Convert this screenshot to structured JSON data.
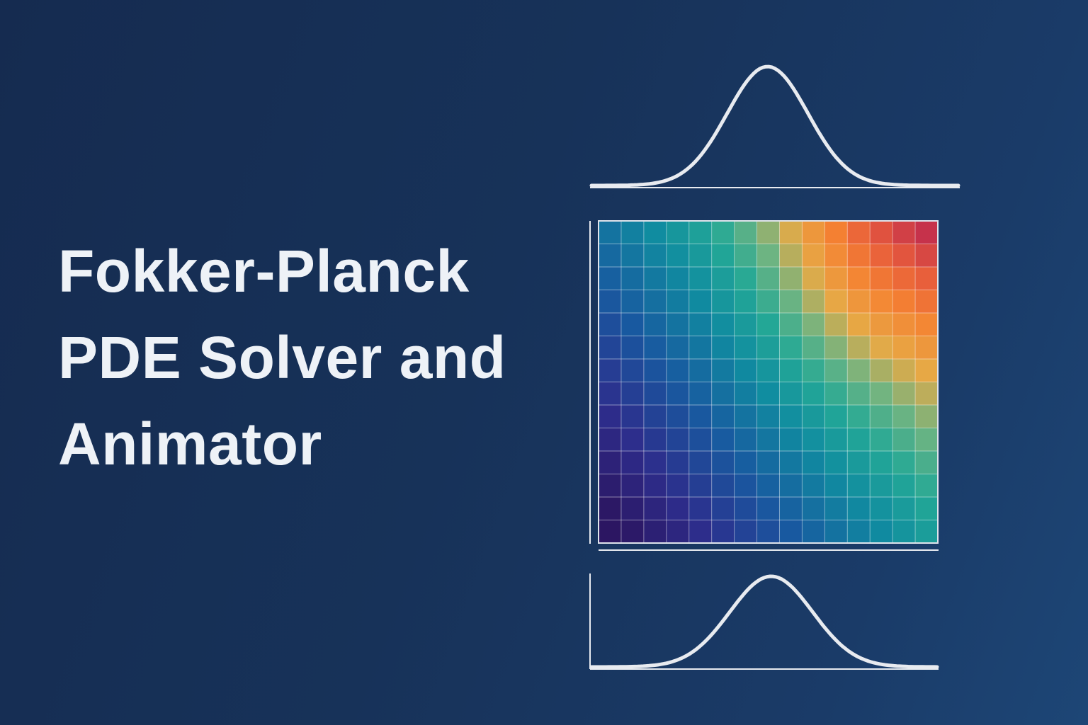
{
  "title": {
    "lines": [
      "Fokker-Planck",
      "PDE Solver and",
      "Animator"
    ]
  },
  "colors": {
    "background_start": "#152b50",
    "background_end": "#1d4676",
    "text": "#eef2f7",
    "curve_stroke": "#e8ebf0",
    "grid_line": "rgba(255,255,255,0.45)"
  },
  "heatmap": {
    "rows": 14,
    "cols": 15,
    "colormap": "viridis-to-red (dark purple → blue → teal → green → orange → red)"
  },
  "marginal_curves": [
    {
      "name": "top-marginal",
      "shape": "gaussian",
      "center_fraction": 0.48,
      "width_fraction": 0.11
    },
    {
      "name": "bottom-marginal",
      "shape": "gaussian",
      "center_fraction": 0.52,
      "width_fraction": 0.12
    }
  ]
}
